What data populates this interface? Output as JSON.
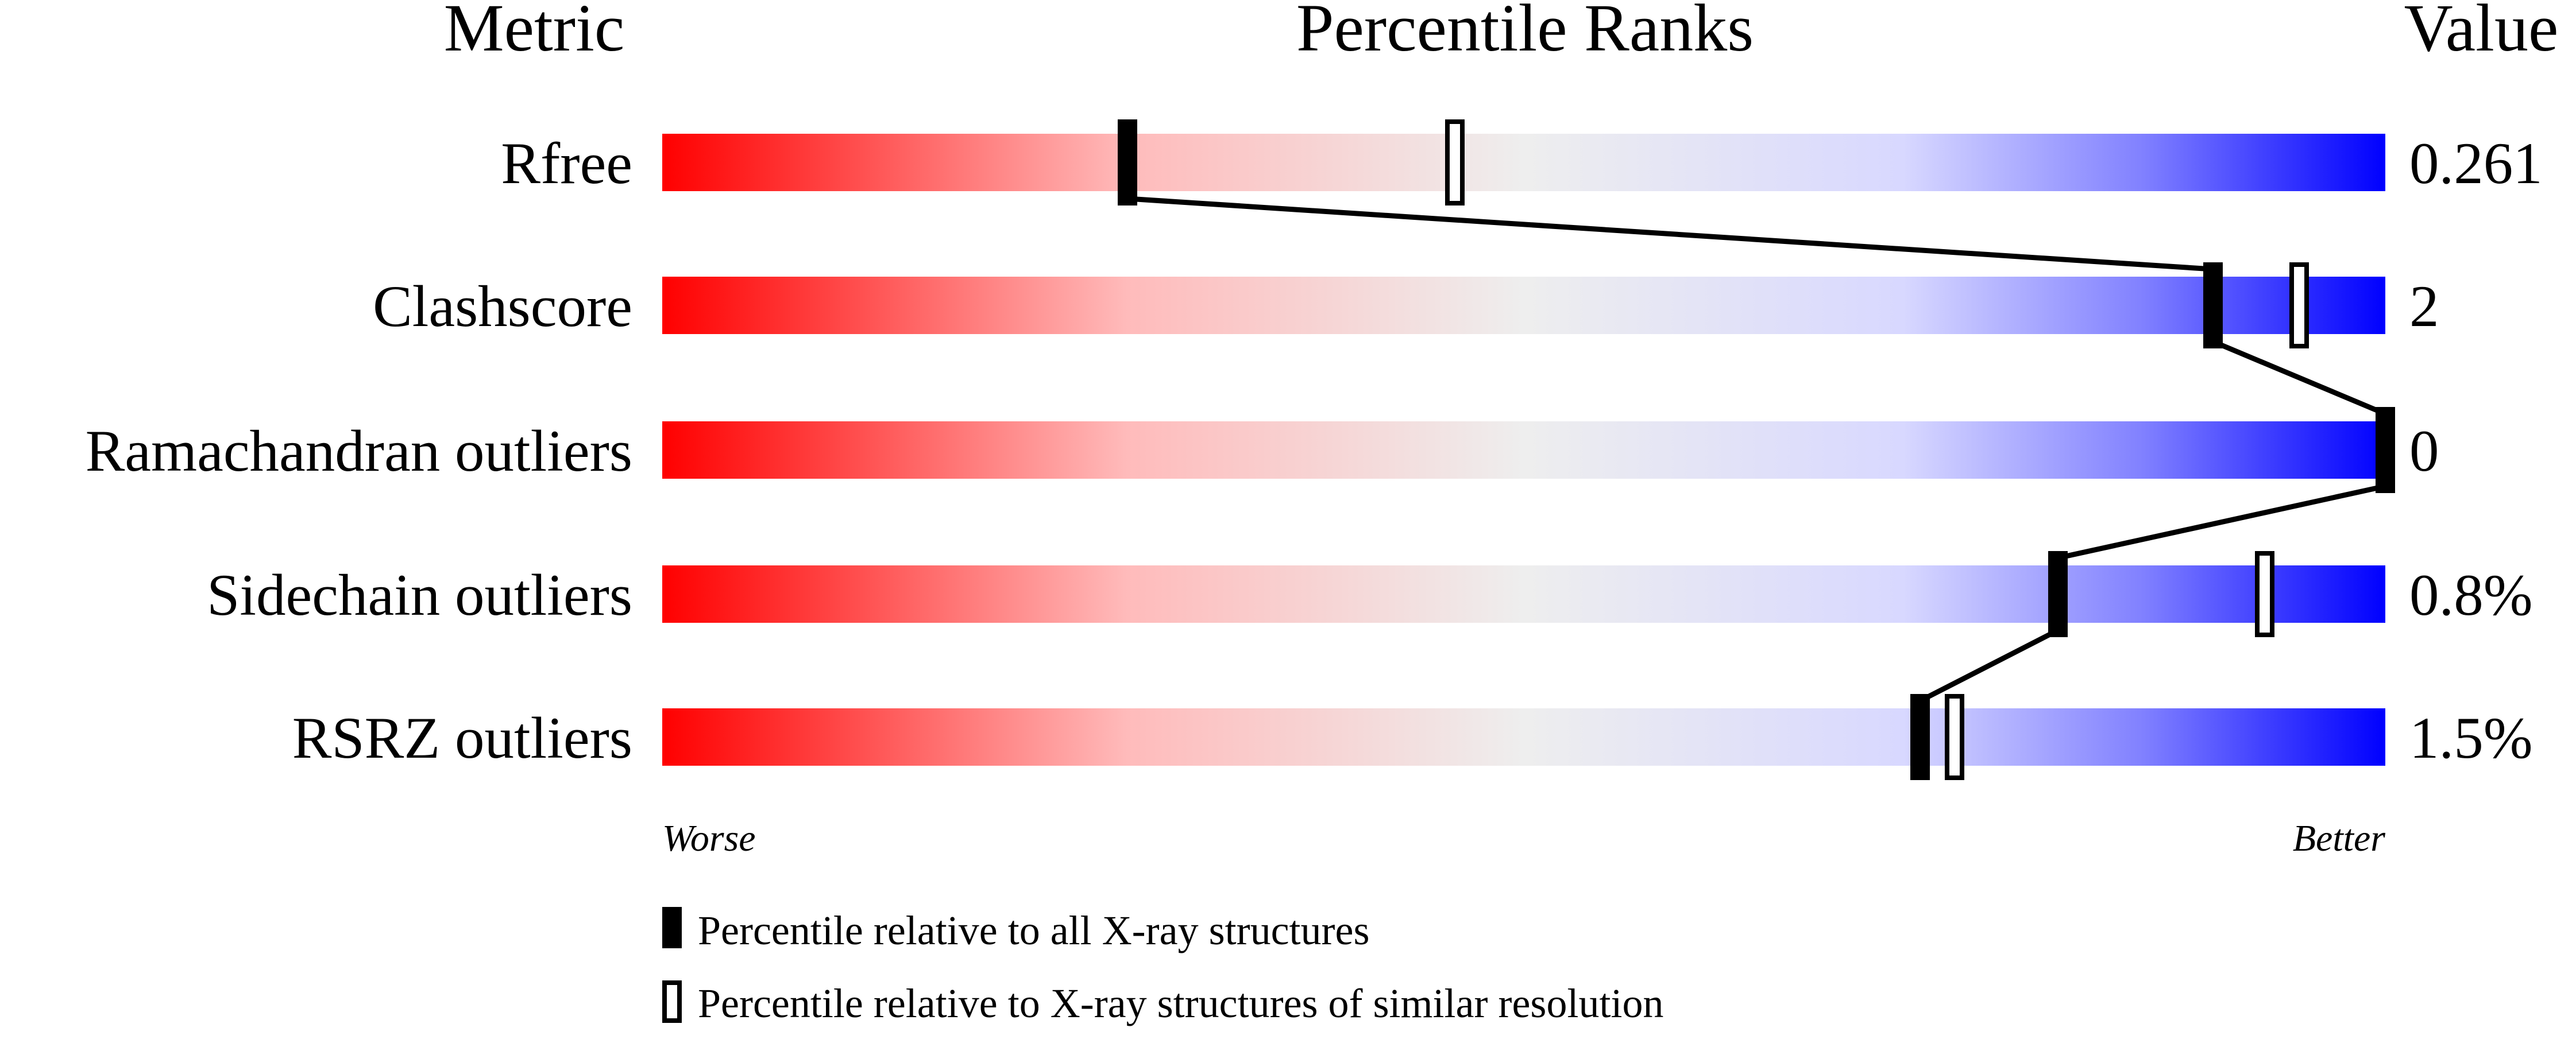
{
  "chart_data": {
    "type": "percentile-slider",
    "headers": {
      "metric": "Metric",
      "ranks": "Percentile Ranks",
      "value": "Value"
    },
    "xlim": [
      0,
      100
    ],
    "axis_labels": {
      "left": "Worse",
      "right": "Better"
    },
    "gradient_colors": [
      "#ff0000",
      "#ffcccc",
      "#eeeeee",
      "#d8d8ff",
      "#0000ff"
    ],
    "metrics": [
      {
        "name": "Rfree",
        "value": "0.261",
        "percentile_all": 27,
        "percentile_similar": 46
      },
      {
        "name": "Clashscore",
        "value": "2",
        "percentile_all": 90,
        "percentile_similar": 95
      },
      {
        "name": "Ramachandran outliers",
        "value": "0",
        "percentile_all": 100,
        "percentile_similar": 100
      },
      {
        "name": "Sidechain outliers",
        "value": "0.8%",
        "percentile_all": 81,
        "percentile_similar": 93
      },
      {
        "name": "RSRZ outliers",
        "value": "1.5%",
        "percentile_all": 73,
        "percentile_similar": 75
      }
    ],
    "legend": [
      {
        "marker": "filled",
        "label": "Percentile relative to all X-ray structures"
      },
      {
        "marker": "open",
        "label": "Percentile relative to X-ray structures of similar resolution"
      }
    ]
  }
}
